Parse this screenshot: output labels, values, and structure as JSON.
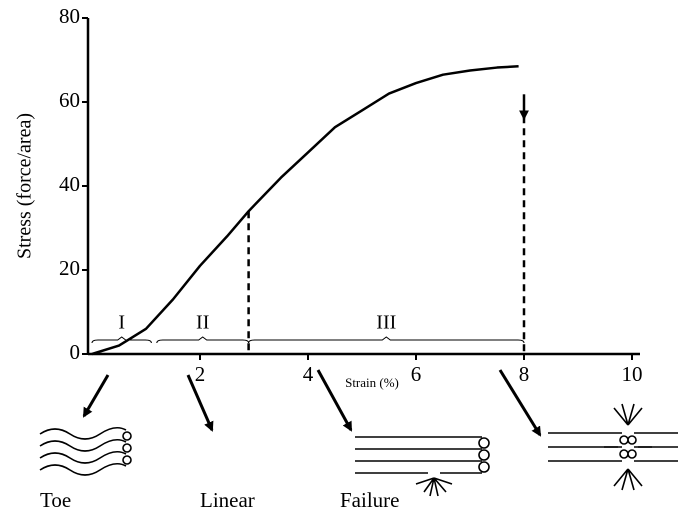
{
  "chart_data": {
    "type": "line",
    "y_label": "Stress (force/area)",
    "x_label": "Strain (%)",
    "x": [
      0,
      0.5,
      1,
      1.5,
      2,
      2.5,
      2.9,
      3.5,
      4,
      4.5,
      5,
      5.5,
      6,
      6.5,
      7,
      7.5,
      7.9
    ],
    "values": [
      0,
      2,
      6,
      13,
      21,
      28,
      34,
      42,
      48,
      54,
      58,
      62,
      64.5,
      66.5,
      67.5,
      68.2,
      68.5
    ],
    "color": "#000000",
    "xlim": [
      0,
      10
    ],
    "ylim": [
      0,
      80
    ],
    "xticks": [
      2,
      4,
      6,
      8,
      10
    ],
    "yticks": [
      0,
      20,
      40,
      60,
      80
    ],
    "dividers": [
      2.9,
      8
    ],
    "regions": [
      {
        "label": "I",
        "start": 0,
        "end": 1.1
      },
      {
        "label": "II",
        "start": 1.2,
        "end": 2.9
      },
      {
        "label": "III",
        "start": 2.9,
        "end": 8
      }
    ],
    "stage_labels": [
      "Toe",
      "Linear",
      "Failure"
    ]
  }
}
